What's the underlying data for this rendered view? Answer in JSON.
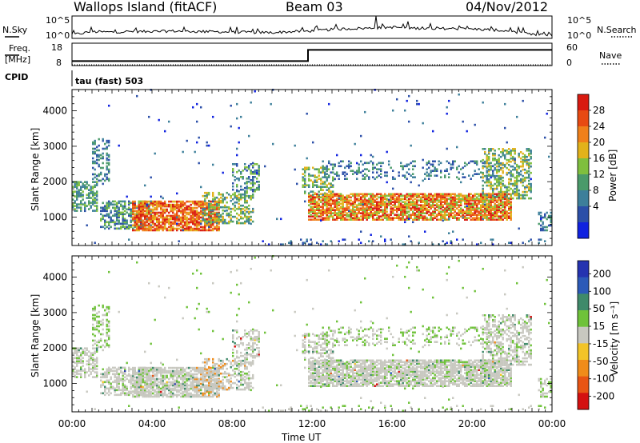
{
  "header": {
    "title": "Wallops Island (fitACF)",
    "beam": "Beam 03",
    "date": "04/Nov/2012"
  },
  "strip_labels": {
    "nsky": "N.Sky",
    "nsearch": "N.Search",
    "freq": "Freq.",
    "freq_unit": "[MHz]",
    "nave": "Nave",
    "cpid": "CPID",
    "cpid_value": "tau (fast) 503"
  },
  "chart_data": [
    {
      "type": "line",
      "title": "",
      "left_ticks": [
        "10^5",
        "10^0"
      ],
      "right_ticks": [
        "10^5",
        "10^0"
      ],
      "x_hours": [
        0,
        1,
        2,
        3,
        4,
        5,
        6,
        7,
        8,
        9,
        10,
        11,
        12,
        13,
        14,
        15,
        16,
        17,
        18,
        19,
        20,
        21,
        22,
        23,
        24
      ],
      "nsky_level": [
        0.16,
        0.3,
        0.28,
        0.31,
        0.3,
        0.33,
        0.31,
        0.3,
        0.28,
        0.27,
        0.26,
        0.3,
        0.33,
        0.4,
        0.44,
        0.46,
        0.5,
        0.46,
        0.44,
        0.44,
        0.42,
        0.38,
        0.32,
        0.16,
        0.16
      ],
      "note_spikes_hours": [
        15.2
      ]
    },
    {
      "type": "line",
      "freq_ticks": [
        "18",
        "8"
      ],
      "nave_ticks": [
        "60",
        "0"
      ],
      "freq_change_hour": 11.8,
      "freq_before_mhz": 10,
      "freq_after_mhz": 15,
      "ylim_freq": [
        8,
        18
      ]
    },
    {
      "type": "heatmap",
      "ylabel": "Slant Range [km]",
      "xlabel": "Time UT",
      "x_tick_labels": [
        "00:00",
        "04:00",
        "08:00",
        "12:00",
        "16:00",
        "20:00",
        "00:00"
      ],
      "x_ticks_hours": [
        0,
        4,
        8,
        12,
        16,
        20,
        24
      ],
      "y_ticks": [
        1000,
        2000,
        3000,
        4000
      ],
      "ylim": [
        200,
        4600
      ],
      "xlim": [
        0,
        24
      ],
      "colorbar": {
        "label": "Power [dB]",
        "ticks": [
          "4",
          "8",
          "12",
          "16",
          "20",
          "24",
          "28"
        ],
        "colors": [
          "#1022e0",
          "#2b4fa8",
          "#3d7f9a",
          "#4a9a6a",
          "#7fbf3e",
          "#e2b21a",
          "#f0801a",
          "#e84a12",
          "#d91a10"
        ]
      }
    },
    {
      "type": "heatmap",
      "ylabel": "Slant Range [km]",
      "xlabel": "Time UT",
      "x_tick_labels": [
        "00:00",
        "04:00",
        "08:00",
        "12:00",
        "16:00",
        "20:00",
        "00:00"
      ],
      "x_ticks_hours": [
        0,
        4,
        8,
        12,
        16,
        20,
        24
      ],
      "y_ticks": [
        1000,
        2000,
        3000,
        4000
      ],
      "ylim": [
        200,
        4600
      ],
      "xlim": [
        0,
        24
      ],
      "colorbar": {
        "label": "Velocity [m s⁻¹]",
        "ticks": [
          "200",
          "100",
          "50",
          "15",
          "-15",
          "-50",
          "-100",
          "-200"
        ],
        "colors": [
          "#2533b0",
          "#2c5ab8",
          "#3f8a6a",
          "#6fc23a",
          "#c8c8c0",
          "#f2c428",
          "#f08c1a",
          "#e85514",
          "#d41010"
        ]
      }
    }
  ]
}
